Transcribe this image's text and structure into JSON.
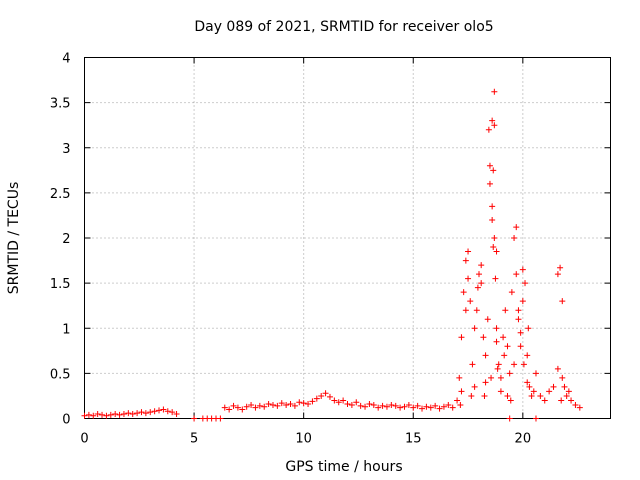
{
  "chart_data": {
    "type": "scatter",
    "title": "Day 089 of 2021, SRMTID for receiver olo5",
    "xlabel": "GPS time / hours",
    "ylabel": "SRMTID / TECUs",
    "xlim": [
      0,
      24
    ],
    "ylim": [
      0,
      4
    ],
    "grid": true,
    "marker": "+",
    "xticks": [
      0,
      5,
      10,
      15,
      20
    ],
    "xtick_labels": [
      "0",
      "5",
      "10",
      "15",
      "20"
    ],
    "yticks": [
      0,
      0.5,
      1,
      1.5,
      2,
      2.5,
      3,
      3.5,
      4
    ],
    "ytick_labels": [
      "0",
      "0.5",
      "1",
      "1.5",
      "2",
      "2.5",
      "3",
      "3.5",
      "4"
    ],
    "series": [
      {
        "name": "SRMTID",
        "color": "#ff0000",
        "x": [
          0.0,
          0.2,
          0.4,
          0.6,
          0.8,
          1.0,
          1.2,
          1.4,
          1.6,
          1.8,
          2.0,
          2.2,
          2.4,
          2.6,
          2.8,
          3.0,
          3.2,
          3.4,
          3.6,
          3.8,
          4.0,
          4.2,
          5.0,
          5.4,
          5.6,
          5.8,
          6.0,
          6.2,
          6.4,
          6.6,
          6.8,
          7.0,
          7.2,
          7.4,
          7.6,
          7.8,
          8.0,
          8.2,
          8.4,
          8.6,
          8.8,
          9.0,
          9.2,
          9.4,
          9.6,
          9.8,
          10.0,
          10.2,
          10.4,
          10.6,
          10.8,
          11.0,
          11.2,
          11.4,
          11.6,
          11.8,
          12.0,
          12.2,
          12.4,
          12.6,
          12.8,
          13.0,
          13.2,
          13.4,
          13.6,
          13.8,
          14.0,
          14.2,
          14.4,
          14.6,
          14.8,
          15.0,
          15.2,
          15.4,
          15.6,
          15.8,
          16.0,
          16.2,
          16.4,
          16.6,
          16.8,
          17.0,
          17.1,
          17.2,
          17.3,
          17.4,
          17.5,
          17.6,
          17.7,
          17.8,
          17.9,
          18.0,
          18.1,
          18.2,
          18.3,
          18.4,
          18.5,
          18.6,
          18.7,
          18.8,
          18.9,
          19.0,
          19.1,
          19.2,
          19.3,
          19.4,
          19.5,
          19.6,
          19.7,
          19.8,
          19.9,
          20.0,
          20.1,
          20.2,
          20.3,
          20.4,
          20.5,
          20.6,
          20.8,
          21.0,
          21.2,
          21.4,
          21.6,
          21.8,
          22.0,
          22.2,
          22.4,
          22.6,
          17.2,
          17.5,
          17.8,
          18.1,
          18.3,
          18.5,
          18.6,
          18.7,
          18.8,
          19.0,
          19.3,
          19.6,
          19.8,
          20.0,
          20.2,
          21.7,
          21.8,
          21.9,
          17.15,
          17.4,
          17.65,
          17.95,
          18.25,
          18.45,
          18.65,
          18.85,
          19.15,
          19.45,
          19.7,
          19.9,
          20.05,
          20.25,
          21.6,
          21.75,
          22.1,
          18.55,
          18.6,
          18.65,
          18.7,
          18.75,
          18.8,
          19.4,
          20.6
        ],
        "y": [
          0.03,
          0.04,
          0.03,
          0.05,
          0.04,
          0.03,
          0.04,
          0.05,
          0.04,
          0.05,
          0.06,
          0.05,
          0.06,
          0.07,
          0.06,
          0.07,
          0.08,
          0.09,
          0.1,
          0.08,
          0.07,
          0.05,
          0.0,
          0.0,
          0.0,
          0.0,
          0.0,
          0.0,
          0.12,
          0.1,
          0.14,
          0.12,
          0.1,
          0.13,
          0.15,
          0.12,
          0.14,
          0.13,
          0.16,
          0.15,
          0.14,
          0.17,
          0.15,
          0.16,
          0.14,
          0.18,
          0.17,
          0.16,
          0.19,
          0.22,
          0.25,
          0.28,
          0.24,
          0.2,
          0.18,
          0.2,
          0.16,
          0.15,
          0.18,
          0.14,
          0.13,
          0.16,
          0.15,
          0.12,
          0.14,
          0.13,
          0.15,
          0.14,
          0.12,
          0.13,
          0.15,
          0.12,
          0.14,
          0.11,
          0.13,
          0.12,
          0.14,
          0.11,
          0.13,
          0.15,
          0.12,
          0.2,
          0.45,
          0.9,
          1.4,
          1.75,
          1.55,
          1.3,
          0.6,
          0.35,
          1.2,
          1.6,
          1.5,
          0.9,
          0.7,
          1.1,
          2.6,
          3.3,
          2.0,
          1.0,
          0.6,
          0.45,
          0.9,
          1.2,
          0.8,
          0.5,
          1.4,
          2.0,
          1.6,
          1.2,
          0.8,
          1.65,
          1.5,
          0.7,
          0.35,
          0.25,
          0.3,
          0.5,
          0.25,
          0.2,
          0.3,
          0.35,
          0.55,
          0.45,
          0.25,
          0.2,
          0.15,
          0.12,
          0.3,
          1.85,
          1.0,
          1.7,
          0.4,
          2.8,
          2.2,
          3.62,
          1.85,
          0.3,
          0.25,
          0.6,
          1.1,
          1.3,
          0.4,
          1.67,
          1.3,
          0.35,
          0.15,
          1.2,
          0.25,
          1.45,
          0.25,
          3.2,
          1.9,
          0.55,
          0.7,
          0.2,
          2.12,
          0.95,
          0.6,
          1.0,
          1.6,
          0.2,
          0.3,
          0.45,
          2.35,
          2.75,
          3.25,
          1.55,
          0.85,
          0.0,
          0.0
        ]
      }
    ]
  }
}
